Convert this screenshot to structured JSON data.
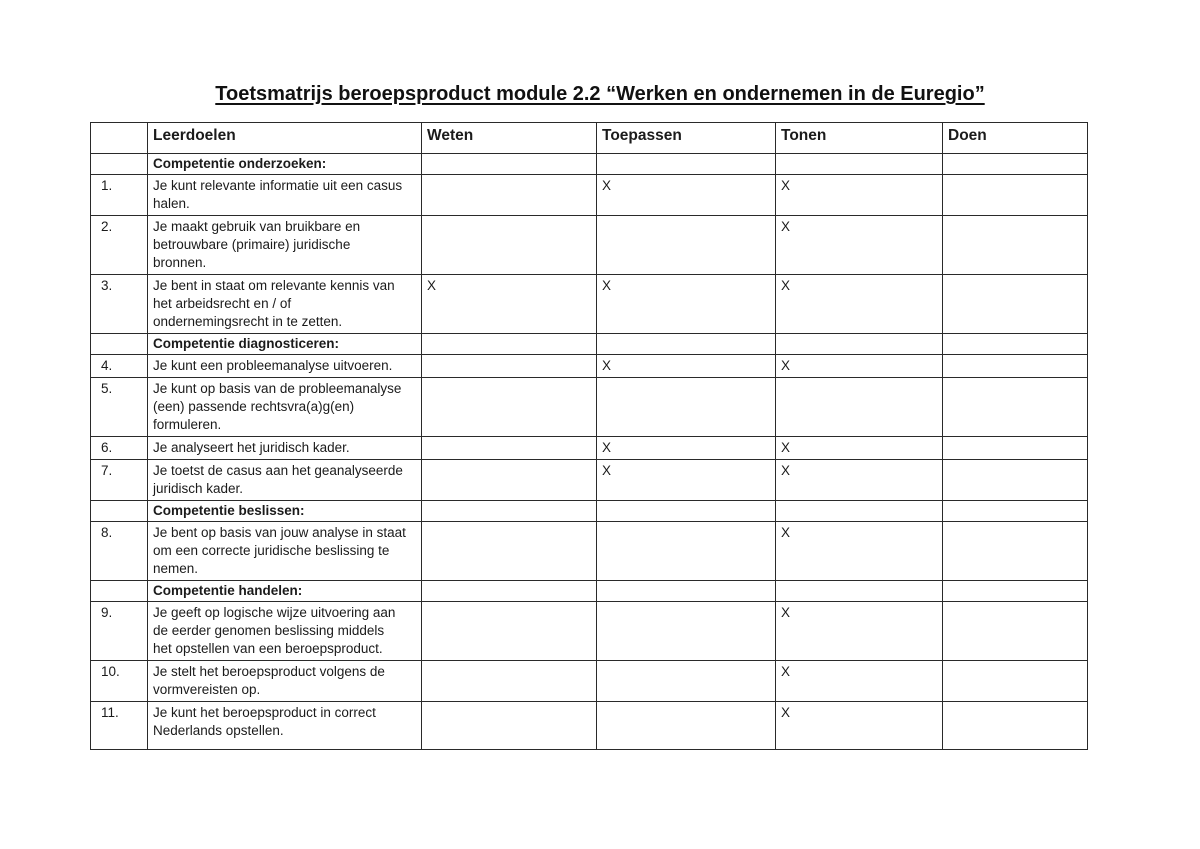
{
  "page": {
    "title": "Toetsmatrijs beroepsproduct module 2.2 “Werken en ondernemen in de Euregio”"
  },
  "table": {
    "columns": [
      "",
      "Leerdoelen",
      "Weten",
      "Toepassen",
      "Tonen",
      "Doen"
    ],
    "rows": [
      {
        "type": "section",
        "label": "Competentie onderzoeken:"
      },
      {
        "type": "item",
        "num": "1.",
        "goal": "Je kunt relevante informatie uit een casus\nhalen.",
        "weten": "",
        "toepassen": "X",
        "tonen": "X",
        "doen": ""
      },
      {
        "type": "item",
        "num": "2.",
        "goal": "Je maakt gebruik van bruikbare en\nbetrouwbare (primaire) juridische\nbronnen.",
        "weten": "",
        "toepassen": "",
        "tonen": "X",
        "doen": ""
      },
      {
        "type": "item",
        "num": "3.",
        "goal": "Je bent in staat om relevante kennis van\nhet arbeidsrecht en / of\nondernemingsrecht in te zetten.",
        "weten": "X",
        "toepassen": "X",
        "tonen": "X",
        "doen": ""
      },
      {
        "type": "section",
        "label": "Competentie diagnosticeren:"
      },
      {
        "type": "item",
        "num": "4.",
        "goal": "Je kunt een probleemanalyse uitvoeren.",
        "weten": "",
        "toepassen": "X",
        "tonen": "X",
        "doen": ""
      },
      {
        "type": "item",
        "num": "5.",
        "goal": "Je kunt op basis van de probleemanalyse\n(een) passende rechtsvra(a)g(en)\nformuleren.",
        "weten": "",
        "toepassen": "",
        "tonen": "",
        "doen": ""
      },
      {
        "type": "item",
        "num": "6.",
        "goal": "Je analyseert het juridisch kader.",
        "weten": "",
        "toepassen": "X",
        "tonen": "X",
        "doen": ""
      },
      {
        "type": "item",
        "num": "7.",
        "goal": "Je toetst de casus aan het geanalyseerde\njuridisch kader.",
        "weten": "",
        "toepassen": "X",
        "tonen": "X",
        "doen": ""
      },
      {
        "type": "section",
        "label": "Competentie beslissen:"
      },
      {
        "type": "item",
        "num": "8.",
        "goal": "Je bent op basis van jouw analyse in staat\nom een correcte juridische beslissing te\nnemen.",
        "weten": "",
        "toepassen": "",
        "tonen": "X",
        "doen": ""
      },
      {
        "type": "section",
        "label": "Competentie handelen:"
      },
      {
        "type": "item",
        "num": "9.",
        "goal": "Je geeft op logische wijze uitvoering aan\nde eerder genomen beslissing middels\nhet opstellen van een beroepsproduct.",
        "weten": "",
        "toepassen": "",
        "tonen": "X",
        "doen": ""
      },
      {
        "type": "item",
        "num": "10.",
        "goal": "Je stelt het beroepsproduct volgens de\nvormvereisten op.",
        "weten": "",
        "toepassen": "",
        "tonen": "X",
        "doen": ""
      },
      {
        "type": "item",
        "num": "11.",
        "goal": "Je kunt het beroepsproduct in correct\nNederlands opstellen.",
        "weten": "",
        "toepassen": "",
        "tonen": "X",
        "doen": ""
      }
    ]
  }
}
